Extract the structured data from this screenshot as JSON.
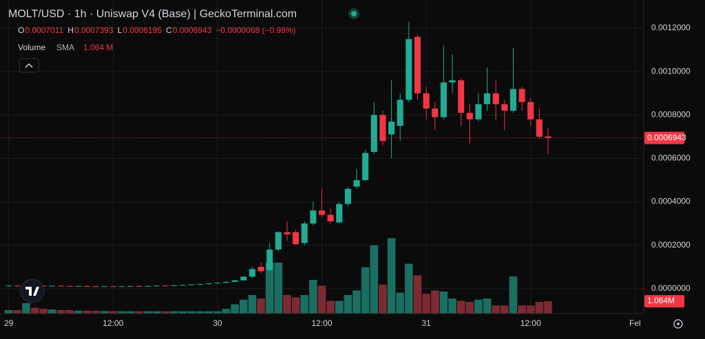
{
  "chart_data": {
    "type": "candlestick",
    "title": "MOLT/USD · 1h · Uniswap V4 (Base) | GeckoTerminal.com",
    "legend": {
      "open": {
        "label": "O",
        "value": 0.0007011
      },
      "high": {
        "label": "H",
        "value": 0.0007393
      },
      "low": {
        "label": "L",
        "value": 0.0006195
      },
      "close": {
        "label": "C",
        "value": 0.0006943
      },
      "change": "−0.0000068 (−0.98%)",
      "volume": {
        "label": "Volume",
        "indicator": "SMA",
        "value_label": "1.064 M"
      }
    },
    "up_color": "#22ab94",
    "down_color": "#f23645",
    "volume_up_color": "#1b6e62",
    "volume_down_color": "#7d2a33",
    "xlim": [
      -1,
      73
    ],
    "xticks": [
      {
        "value": 0,
        "label": "29"
      },
      {
        "value": 12,
        "label": "12:00"
      },
      {
        "value": 24,
        "label": "30"
      },
      {
        "value": 36,
        "label": "12:00"
      },
      {
        "value": 48,
        "label": "31"
      },
      {
        "value": 60,
        "label": "12:00"
      },
      {
        "value": 72,
        "label": "Fel"
      }
    ],
    "ylim": [
      -0.000115,
      0.00133
    ],
    "yticks": [
      {
        "value": 0,
        "label": "0.0000000"
      },
      {
        "value": 0.0002,
        "label": "0.0002000"
      },
      {
        "value": 0.0004,
        "label": "0.0004000"
      },
      {
        "value": 0.0006,
        "label": "0.0006000"
      },
      {
        "value": 0.0008,
        "label": "0.0008000"
      },
      {
        "value": 0.001,
        "label": "0.0010000"
      },
      {
        "value": 0.0012,
        "label": "0.0012000"
      }
    ],
    "grid": true,
    "open": [
      1.2e-05,
      1.4e-05,
      1.3e-05,
      1.5e-05,
      1.3e-05,
      1.2e-05,
      1.3e-05,
      1.2e-05,
      1.1e-05,
      1.2e-05,
      1.1e-05,
      1e-05,
      1.1e-05,
      1e-05,
      1.1e-05,
      1.2e-05,
      1.1e-05,
      1.2e-05,
      1.4e-05,
      1.3e-05,
      1.5e-05,
      1.7e-05,
      1.9e-05,
      2.1e-05,
      2.4e-05,
      2.7e-05,
      3.1e-05,
      3.8e-05,
      5.5e-05,
      0.0001,
      8.5e-05,
      0.00018,
      0.00026,
      0.00026,
      0.00021,
      0.0003,
      0.00036,
      0.00034,
      0.000305,
      0.00039,
      0.00047,
      0.0005,
      0.00063,
      0.0008,
      0.00071,
      0.00075,
      0.00087,
      0.00116,
      0.0009,
      0.00083,
      0.00079,
      0.00095,
      0.00096,
      0.00081,
      0.00078,
      0.00085,
      0.0009,
      0.00085,
      0.00082,
      0.00092,
      0.00086,
      0.00078,
      0.0007011
    ],
    "high": [
      1.6e-05,
      1.8e-05,
      1.7e-05,
      1.6e-05,
      1.5e-05,
      1.4e-05,
      1.5e-05,
      1.4e-05,
      1.3e-05,
      1.4e-05,
      1.3e-05,
      1.2e-05,
      1.3e-05,
      1.2e-05,
      1.3e-05,
      1.4e-05,
      1.3e-05,
      1.5e-05,
      1.6e-05,
      1.6e-05,
      1.8e-05,
      2e-05,
      2.2e-05,
      2.5e-05,
      2.8e-05,
      3.3e-05,
      4e-05,
      5.8e-05,
      0.0001,
      0.00012,
      0.00021,
      0.000265,
      0.00031,
      0.00027,
      0.00031,
      0.0004,
      0.00046,
      0.00037,
      0.0004,
      0.00047,
      0.00055,
      0.00064,
      0.00086,
      0.00082,
      0.00096,
      0.0009,
      0.00123,
      0.00117,
      0.00093,
      0.00086,
      0.00112,
      0.00108,
      0.00097,
      0.00085,
      0.0009,
      0.00102,
      0.00096,
      0.00087,
      0.00111,
      0.00093,
      0.00088,
      0.00083,
      0.0007393
    ],
    "low": [
      1e-05,
      1.2e-05,
      1.1e-05,
      1.2e-05,
      1.1e-05,
      1e-05,
      1.1e-05,
      1e-05,
      9e-06,
      1e-05,
      9e-06,
      8e-06,
      9e-06,
      8e-06,
      9e-06,
      1e-05,
      9e-06,
      1e-05,
      1.2e-05,
      1.1e-05,
      1.3e-05,
      1.5e-05,
      1.7e-05,
      1.9e-05,
      2.2e-05,
      2.5e-05,
      2.9e-05,
      3.6e-05,
      5e-05,
      7.2e-05,
      8e-05,
      0.00017,
      0.00022,
      0.0002,
      0.0002,
      0.00029,
      0.00033,
      0.0003,
      0.0003,
      0.00038,
      0.00046,
      0.000495,
      0.00062,
      0.00066,
      0.0006,
      0.00068,
      0.00086,
      0.00087,
      0.00078,
      0.00073,
      0.00078,
      0.0009,
      0.00075,
      0.00067,
      0.00077,
      0.00082,
      0.00078,
      0.00073,
      0.00081,
      0.00082,
      0.00075,
      0.00069,
      0.0006195
    ],
    "close": [
      1.4e-05,
      1.3e-05,
      1.5e-05,
      1.3e-05,
      1.2e-05,
      1.3e-05,
      1.2e-05,
      1.1e-05,
      1.2e-05,
      1.1e-05,
      1e-05,
      1.1e-05,
      1e-05,
      1.1e-05,
      1.2e-05,
      1.1e-05,
      1.2e-05,
      1.4e-05,
      1.3e-05,
      1.5e-05,
      1.7e-05,
      1.9e-05,
      2.1e-05,
      2.4e-05,
      2.7e-05,
      3.1e-05,
      3.8e-05,
      5.5e-05,
      9e-05,
      8e-05,
      0.00018,
      0.00026,
      0.00025,
      0.000205,
      0.0003,
      0.00036,
      0.00034,
      0.00031,
      0.00039,
      0.00046,
      0.0005,
      0.000625,
      0.0008,
      0.00068,
      0.00077,
      0.00087,
      0.00115,
      0.0009,
      0.00083,
      0.00079,
      0.00095,
      0.00096,
      0.00081,
      0.00078,
      0.00085,
      0.0009,
      0.00085,
      0.00082,
      0.00092,
      0.00086,
      0.00078,
      0.0007,
      0.0006943
    ],
    "volume": [
      300000,
      300000,
      900000,
      500000,
      400000,
      350000,
      300000,
      300000,
      250000,
      250000,
      250000,
      220000,
      220000,
      200000,
      200000,
      200000,
      200000,
      200000,
      200000,
      200000,
      200000,
      200000,
      200000,
      200000,
      200000,
      400000,
      800000,
      1200000,
      1600000,
      1300000,
      4400000,
      4400000,
      1600000,
      1400000,
      1600000,
      2900000,
      2400000,
      1100000,
      1100000,
      1600000,
      2000000,
      4000000,
      5900000,
      2500000,
      6500000,
      1800000,
      4300000,
      3300000,
      1700000,
      2000000,
      1900000,
      1300000,
      1100000,
      1000000,
      1200000,
      1300000,
      700000,
      700000,
      3200000,
      700000,
      700000,
      1000000,
      1064000
    ],
    "volume_ylim": [
      0,
      7000000
    ],
    "volume_badge_label": "1.064M"
  }
}
